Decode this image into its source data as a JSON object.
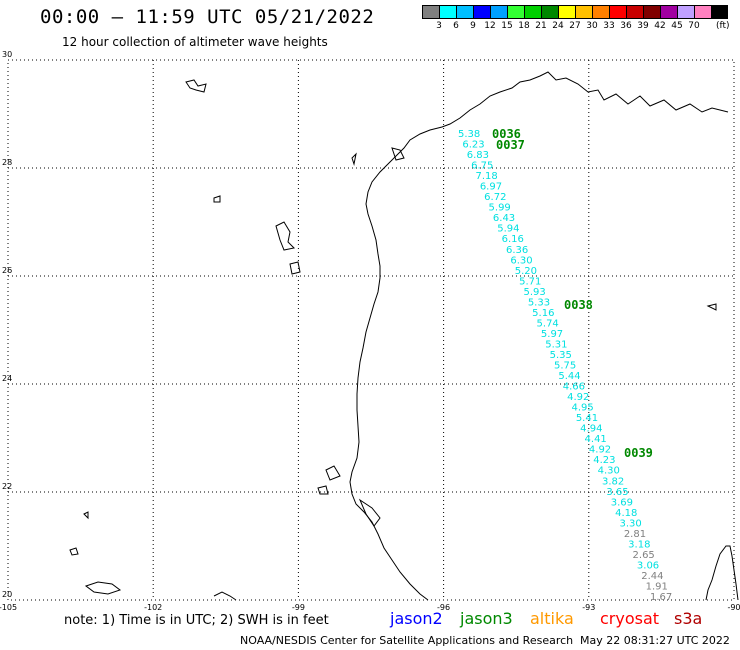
{
  "header": {
    "title": "00:00 – 11:59 UTC 05/21/2022",
    "subtitle": "12 hour collection of altimeter wave heights"
  },
  "color_scale": {
    "colors": [
      "#808080",
      "#00ffff",
      "#00bfff",
      "#0000ff",
      "#00a0ff",
      "#33ff33",
      "#00d000",
      "#008800",
      "#ffff00",
      "#ffc000",
      "#ff8000",
      "#ff0000",
      "#c80000",
      "#800000",
      "#a000a0",
      "#c0a0ff",
      "#ff80c0",
      "#000000"
    ],
    "labels": [
      "3",
      "6",
      "9",
      "12",
      "15",
      "18",
      "21",
      "24",
      "27",
      "30",
      "33",
      "36",
      "39",
      "42",
      "45",
      "70"
    ],
    "unit": "(ft)"
  },
  "axes": {
    "lon_labels": [
      "-105",
      "-102",
      "-99",
      "-96",
      "-93",
      "-90"
    ],
    "lat_labels": [
      "30",
      "28",
      "26",
      "24",
      "22",
      "20"
    ]
  },
  "tracks": [
    {
      "id": "0036",
      "color": "#008800"
    },
    {
      "id": "0037",
      "color": "#008800"
    },
    {
      "id": "0038",
      "color": "#008800"
    },
    {
      "id": "0039",
      "color": "#008800"
    }
  ],
  "swh_values": [
    "5.38",
    "6.23",
    "6.83",
    "6.75",
    "7.18",
    "6.97",
    "6.72",
    "5.99",
    "6.43",
    "5.94",
    "6.16",
    "6.36",
    "6.30",
    "5.20",
    "5.71",
    "5.93",
    "5.33",
    "5.16",
    "5.74",
    "5.97",
    "5.31",
    "5.35",
    "5.75",
    "5.44",
    "4.66",
    "4.92",
    "4.95",
    "5.41",
    "4.94",
    "4.41",
    "4.92",
    "4.23",
    "4.30",
    "3.82",
    "3.65",
    "3.69",
    "4.18",
    "3.30",
    "2.81",
    "3.18",
    "2.65",
    "3.06",
    "2.44",
    "1.91",
    "1.67"
  ],
  "swh_colors": [
    "#00e0e0",
    "#00e0e0",
    "#00e0e0",
    "#00e0e0",
    "#00e0e0",
    "#00e0e0",
    "#00e0e0",
    "#00e0e0",
    "#00e0e0",
    "#00e0e0",
    "#00e0e0",
    "#00e0e0",
    "#00e0e0",
    "#00e0e0",
    "#00e0e0",
    "#00e0e0",
    "#00e0e0",
    "#00e0e0",
    "#00e0e0",
    "#00e0e0",
    "#00e0e0",
    "#00e0e0",
    "#00e0e0",
    "#00e0e0",
    "#00e0e0",
    "#00e0e0",
    "#00e0e0",
    "#00e0e0",
    "#00e0e0",
    "#00e0e0",
    "#00e0e0",
    "#00e0e0",
    "#00e0e0",
    "#00e0e0",
    "#00e0e0",
    "#00e0e0",
    "#00e0e0",
    "#00e0e0",
    "#808080",
    "#00e0e0",
    "#808080",
    "#00e0e0",
    "#808080",
    "#808080",
    "#808080"
  ],
  "footer": {
    "note": "note: 1) Time is in UTC; 2) SWH is in feet",
    "legend": [
      {
        "label": "jason2",
        "color": "#0000ff"
      },
      {
        "label": "jason3",
        "color": "#008800"
      },
      {
        "label": "altika",
        "color": "#ff9900"
      },
      {
        "label": "cryosat",
        "color": "#ff0000"
      },
      {
        "label": "s3a",
        "color": "#b00000"
      }
    ],
    "credit": "NOAA/NESDIS Center for Satellite Applications and Research",
    "timestamp": "May 22 08:31:27 UTC 2022"
  }
}
